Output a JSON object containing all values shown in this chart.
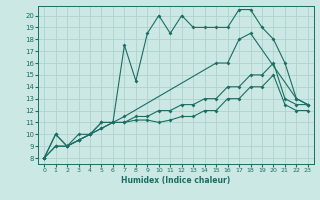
{
  "xlabel": "Humidex (Indice chaleur)",
  "xlim": [
    -0.5,
    23.5
  ],
  "ylim": [
    7.5,
    20.8
  ],
  "xticks": [
    0,
    1,
    2,
    3,
    4,
    5,
    6,
    7,
    8,
    9,
    10,
    11,
    12,
    13,
    14,
    15,
    16,
    17,
    18,
    19,
    20,
    21,
    22,
    23
  ],
  "yticks": [
    8,
    9,
    10,
    11,
    12,
    13,
    14,
    15,
    16,
    17,
    18,
    19,
    20
  ],
  "bg_color": "#cce8e4",
  "line_color": "#1a6e62",
  "grid_color": "#aacfca",
  "line1_x": [
    0,
    1,
    2,
    3,
    4,
    5,
    6,
    7,
    8,
    9,
    10,
    11,
    12,
    13,
    14,
    15,
    16,
    17,
    18,
    19,
    20,
    21,
    22,
    23
  ],
  "line1_y": [
    8,
    10,
    9,
    10,
    10,
    11,
    11,
    17.5,
    14.5,
    18.5,
    20,
    18.5,
    20,
    19,
    19,
    19,
    19,
    20.5,
    20.5,
    19,
    18,
    16,
    13,
    12.5
  ],
  "line2_x": [
    0,
    1,
    2,
    3,
    4,
    5,
    6,
    7,
    15,
    16,
    17,
    18,
    22,
    23
  ],
  "line2_y": [
    8,
    10,
    9,
    9.5,
    10,
    11,
    11,
    11.5,
    16,
    16,
    18,
    18.5,
    13,
    12.5
  ],
  "line3_x": [
    0,
    1,
    2,
    3,
    4,
    5,
    6,
    7,
    8,
    9,
    10,
    11,
    12,
    13,
    14,
    15,
    16,
    17,
    18,
    19,
    20,
    21,
    22,
    23
  ],
  "line3_y": [
    8,
    9,
    9,
    9.5,
    10,
    10.5,
    11,
    11,
    11.5,
    11.5,
    12,
    12,
    12.5,
    12.5,
    13,
    13,
    14,
    14,
    15,
    15,
    16,
    13,
    12.5,
    12.5
  ],
  "line4_x": [
    0,
    1,
    2,
    3,
    4,
    5,
    6,
    7,
    8,
    9,
    10,
    11,
    12,
    13,
    14,
    15,
    16,
    17,
    18,
    19,
    20,
    21,
    22,
    23
  ],
  "line4_y": [
    8,
    9,
    9,
    9.5,
    10,
    10.5,
    11,
    11,
    11.2,
    11.2,
    11,
    11.2,
    11.5,
    11.5,
    12,
    12,
    13,
    13,
    14,
    14,
    15,
    12.5,
    12,
    12
  ]
}
